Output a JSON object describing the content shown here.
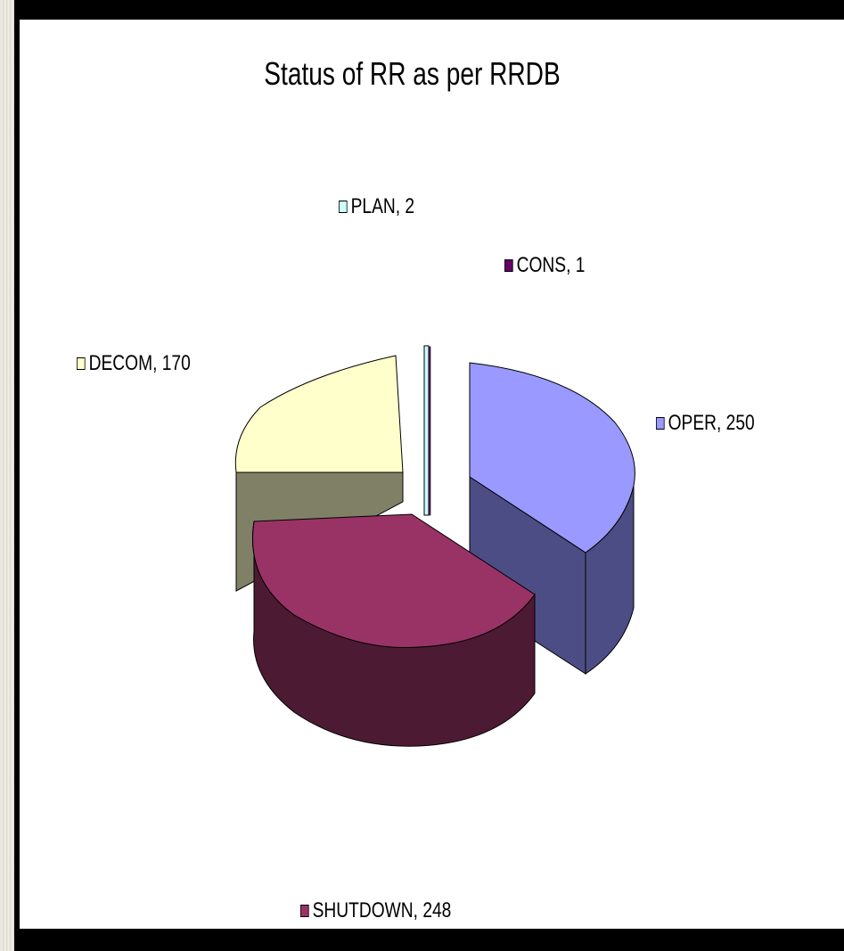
{
  "chart_data": {
    "type": "pie",
    "title": "Status of RR as per RRDB",
    "style": "3d-exploded",
    "slices": [
      {
        "label": "OPER",
        "value": 250,
        "color": "#9999ff",
        "side_color": "#4d4d85",
        "display": "OPER, 250"
      },
      {
        "label": "SHUTDOWN",
        "value": 248,
        "color": "#993366",
        "side_color": "#4d1a33",
        "display": "SHUTDOWN, 248"
      },
      {
        "label": "DECOM",
        "value": 170,
        "color": "#ffffcc",
        "side_color": "#808066",
        "display": "DECOM, 170"
      },
      {
        "label": "PLAN",
        "value": 2,
        "color": "#ccffff",
        "side_color": "#668080",
        "display": "PLAN, 2"
      },
      {
        "label": "CONS",
        "value": 1,
        "color": "#660066",
        "side_color": "#330033",
        "display": "CONS, 1"
      }
    ]
  }
}
